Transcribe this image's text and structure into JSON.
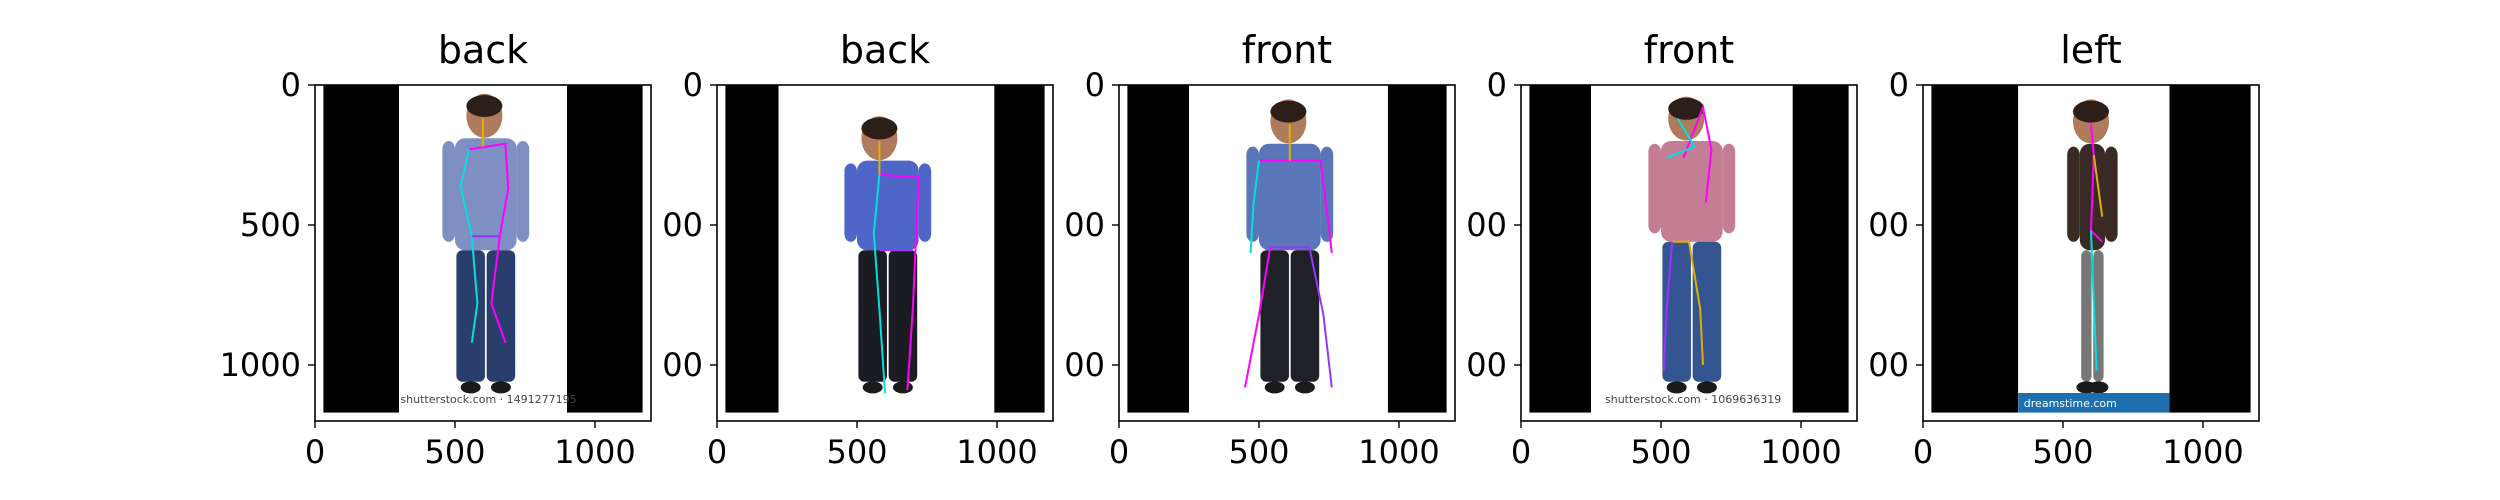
{
  "figure": {
    "panels": [
      {
        "title": "back",
        "image": "man in blue checked shirt and jeans, seen from behind, with pose keypoint overlay",
        "watermark": "shutterstock.com · 1491277195",
        "xticks": [
          "0",
          "500",
          "1000"
        ],
        "yticks": [
          "0",
          "500",
          "1000"
        ],
        "xlim": [
          0,
          1200
        ],
        "ylim": [
          1200,
          0
        ],
        "photo_x": [
          300,
          900
        ],
        "shirt_color": "#7f8fc4",
        "pants_color": "#2a3e6e",
        "skeleton": [
          [
            [
              550,
              230
            ],
            [
              680,
              210
            ],
            [
              690,
              370
            ],
            [
              660,
              540
            ],
            [
              630,
              780
            ],
            [
              680,
              920
            ]
          ],
          [
            [
              550,
              230
            ],
            [
              520,
              360
            ],
            [
              560,
              540
            ],
            [
              580,
              780
            ],
            [
              560,
              920
            ]
          ],
          [
            [
              600,
              120
            ],
            [
              600,
              220
            ]
          ],
          [
            [
              560,
              540
            ],
            [
              660,
              540
            ]
          ]
        ]
      },
      {
        "title": "back",
        "image": "man in blue shirt and dark pants, rear three-quarter view, with pose keypoint overlay",
        "watermark": "",
        "xticks": [
          "0",
          "500",
          "1000"
        ],
        "yticks": [
          "0",
          "00",
          "00"
        ],
        "xlim": [
          0,
          1200
        ],
        "ylim": [
          1200,
          0
        ],
        "photo_x": [
          220,
          990
        ],
        "shirt_color": "#4f66c8",
        "pants_color": "#1b1b22",
        "skeleton": [
          [
            [
              580,
              320
            ],
            [
              720,
              330
            ],
            [
              710,
              560
            ],
            [
              700,
              790
            ],
            [
              680,
              1090
            ]
          ],
          [
            [
              580,
              320
            ],
            [
              560,
              530
            ],
            [
              580,
              800
            ],
            [
              600,
              1100
            ]
          ],
          [
            [
              580,
              200
            ],
            [
              580,
              320
            ]
          ],
          [
            [
              580,
              590
            ],
            [
              700,
              590
            ]
          ]
        ]
      },
      {
        "title": "front",
        "image": "smiling man in blue t-shirt and black jeans, front view, with pose keypoint overlay",
        "watermark": "",
        "xticks": [
          "0",
          "500",
          "1000"
        ],
        "yticks": [
          "0",
          "00",
          "00"
        ],
        "xlim": [
          0,
          1200
        ],
        "ylim": [
          1200,
          0
        ],
        "photo_x": [
          250,
          960
        ],
        "shirt_color": "#5a76b8",
        "pants_color": "#1f2028",
        "skeleton": [
          [
            [
              500,
              270
            ],
            [
              720,
              270
            ],
            [
              740,
              430
            ],
            [
              760,
              600
            ]
          ],
          [
            [
              500,
              270
            ],
            [
              480,
              430
            ],
            [
              470,
              600
            ]
          ],
          [
            [
              610,
              140
            ],
            [
              610,
              270
            ]
          ],
          [
            [
              540,
              580
            ],
            [
              680,
              580
            ],
            [
              730,
              820
            ],
            [
              760,
              1080
            ]
          ],
          [
            [
              540,
              580
            ],
            [
              500,
              820
            ],
            [
              450,
              1080
            ]
          ]
        ]
      },
      {
        "title": "front",
        "image": "man in plaid shirt and jeans, hand to chin, front view, with pose keypoint overlay",
        "watermark": "shutterstock.com · 1069636319",
        "xticks": [
          "0",
          "500",
          "1000"
        ],
        "yticks": [
          "0",
          "00",
          "00"
        ],
        "xlim": [
          0,
          1200
        ],
        "ylim": [
          1200,
          0
        ],
        "photo_x": [
          250,
          970
        ],
        "shirt_color": "#c37e93",
        "pants_color": "#34558f",
        "skeleton": [
          [
            [
              580,
              260
            ],
            [
              650,
              80
            ],
            [
              680,
              230
            ],
            [
              660,
              420
            ]
          ],
          [
            [
              520,
              260
            ],
            [
              620,
              220
            ],
            [
              560,
              120
            ]
          ],
          [
            [
              540,
              560
            ],
            [
              600,
              560
            ],
            [
              640,
              800
            ],
            [
              650,
              1000
            ]
          ],
          [
            [
              540,
              560
            ],
            [
              520,
              800
            ],
            [
              510,
              1020
            ]
          ]
        ]
      },
      {
        "title": "left",
        "image": "man in dark sweater and grey pants, left side profile, with pose keypoint overlay",
        "watermark": "dreamstime.com",
        "xticks": [
          "0",
          "500",
          "1000"
        ],
        "yticks": [
          "0",
          "00",
          "00"
        ],
        "xlim": [
          0,
          1200
        ],
        "ylim": [
          1200,
          0
        ],
        "photo_x": [
          340,
          880
        ],
        "shirt_color": "#3a2a26",
        "pants_color": "#777777",
        "skeleton": [
          [
            [
              600,
              140
            ],
            [
              610,
              250
            ],
            [
              600,
              520
            ],
            [
              640,
              560
            ]
          ],
          [
            [
              600,
              520
            ],
            [
              610,
              780
            ],
            [
              620,
              1020
            ]
          ],
          [
            [
              610,
              250
            ],
            [
              640,
              470
            ]
          ]
        ]
      }
    ]
  },
  "colors": {
    "skin": "#b07a5c",
    "hair": "#2b1f18",
    "shoe": "#1a1a1a",
    "bar": "#000000",
    "photo_bg": "#ffffff",
    "stock_strip": "#1f6fae",
    "skeleton": [
      "#ff00ff",
      "#00e0e0",
      "#e0b000",
      "#9933ff"
    ]
  }
}
